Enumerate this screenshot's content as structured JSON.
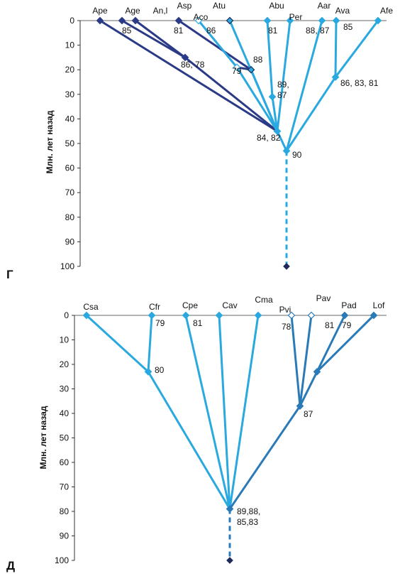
{
  "colors": {
    "light": "#29a9df",
    "mid": "#2a7ab8",
    "dark": "#2b3a86",
    "root": "#1f2a5a",
    "axis": "#333333",
    "white": "#ffffff"
  },
  "panels": [
    {
      "label": "Г",
      "ylabel": "Млн. лет назад",
      "ticks": [
        "0",
        "10",
        "20",
        "30",
        "40",
        "50",
        "60",
        "70",
        "80",
        "90",
        "100"
      ],
      "taxa": [
        "Ape",
        "Age",
        "An,l",
        "Asp",
        "Aco",
        "Atu",
        "Abu",
        "Per",
        "Aar",
        "Ava",
        "Afe"
      ],
      "ages": [
        "85",
        "81",
        "86",
        "86, 78",
        "79",
        "88",
        "81",
        "89,\n87",
        "88, 87",
        "85",
        "86, 83, 81",
        "84, 82",
        "90"
      ]
    },
    {
      "label": "Д",
      "ylabel": "Млн. лет назад",
      "ticks": [
        "0",
        "10",
        "20",
        "30",
        "40",
        "50",
        "60",
        "70",
        "80",
        "90",
        "100"
      ],
      "taxa": [
        "Csa",
        "Cfr",
        "Cpe",
        "Cav",
        "Cma",
        "Pvi",
        "Pav",
        "Pad",
        "Lof"
      ],
      "ages": [
        "79",
        "81",
        "80",
        "78",
        "81",
        "79",
        "87",
        "89,88,\n85,83"
      ]
    }
  ]
}
